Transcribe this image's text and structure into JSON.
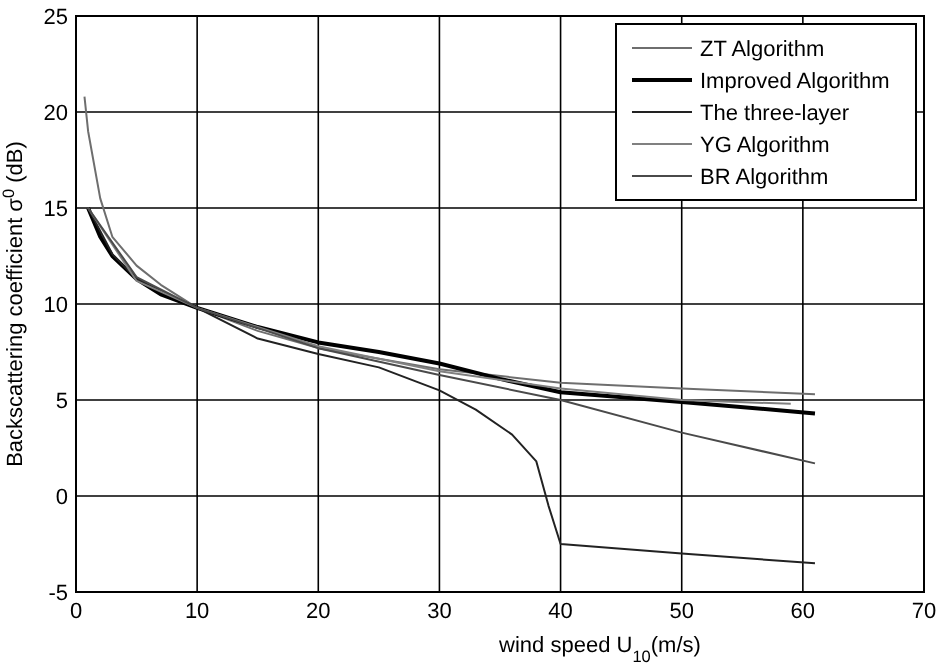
{
  "chart_data": {
    "type": "line",
    "xlabel": "wind speed U$_{10}$(m/s)",
    "ylabel": "Backscattering coefficient σ$^{0}$ (dB)",
    "xlim": [
      0,
      70
    ],
    "ylim": [
      -5,
      25
    ],
    "xticks": [
      0,
      10,
      20,
      30,
      40,
      50,
      60,
      70
    ],
    "yticks": [
      -5,
      0,
      5,
      10,
      15,
      20,
      25
    ],
    "grid": true,
    "legend": "top right",
    "marker": "none",
    "line_style": "solid",
    "series": [
      {
        "name": "ZT Algorithm",
        "color": "#6e6e6e",
        "x": [
          0.7,
          1,
          2,
          3,
          5,
          7,
          10,
          15,
          20,
          30,
          40,
          50,
          61
        ],
        "values": [
          20.8,
          19,
          15.5,
          13.5,
          12,
          11,
          9.8,
          8.6,
          7.7,
          6.6,
          5.9,
          5.6,
          5.3
        ]
      },
      {
        "name": "Improved Algorithm",
        "color": "#000000",
        "x": [
          1,
          2,
          3,
          5,
          7,
          10,
          15,
          20,
          25,
          30,
          35,
          40,
          50,
          61
        ],
        "values": [
          15,
          13.5,
          12.5,
          11.3,
          10.5,
          9.8,
          8.8,
          8,
          7.5,
          6.9,
          6.1,
          5.4,
          4.9,
          4.3
        ]
      },
      {
        "name": "The three-layer",
        "color": "#222222",
        "x": [
          1,
          3,
          5,
          10,
          15,
          20,
          25,
          30,
          33,
          36,
          38,
          39,
          40,
          50,
          61
        ],
        "values": [
          15,
          12.6,
          11.3,
          9.8,
          8.2,
          7.4,
          6.7,
          5.5,
          4.5,
          3.2,
          1.8,
          -0.5,
          -2.5,
          -3,
          -3.5
        ]
      },
      {
        "name": "YG Algorithm",
        "color": "#808080",
        "x": [
          1,
          5,
          10,
          20,
          30,
          40,
          50,
          59
        ],
        "values": [
          15,
          11.2,
          9.8,
          7.8,
          6.5,
          5.6,
          5,
          4.8
        ]
      },
      {
        "name": "BR Algorithm",
        "color": "#4a4a4a",
        "x": [
          1,
          5,
          10,
          20,
          30,
          40,
          50,
          61
        ],
        "values": [
          15,
          11.4,
          9.8,
          7.7,
          6.3,
          5,
          3.3,
          1.7
        ]
      }
    ]
  }
}
